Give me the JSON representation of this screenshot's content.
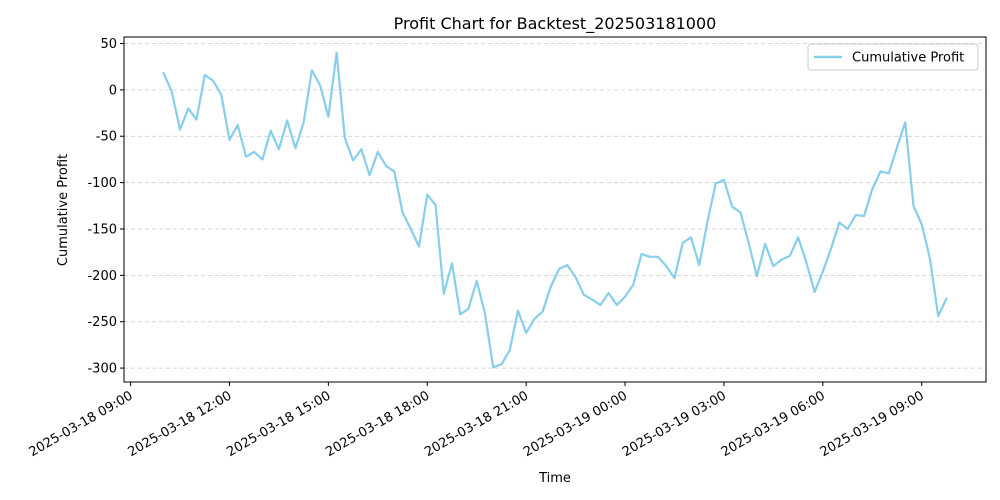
{
  "chart_data": {
    "type": "line",
    "title": "Profit Chart for Backtest_202503181000",
    "xlabel": "Time",
    "ylabel": "Cumulative Profit",
    "xlim": [
      "2025-03-18 08:48",
      "2025-03-19 10:57"
    ],
    "ylim": [
      -315,
      57
    ],
    "grid": "horizontal dashed",
    "legend_position": "top-right",
    "x_ticks": [
      "2025-03-18 09:00",
      "2025-03-18 12:00",
      "2025-03-18 15:00",
      "2025-03-18 18:00",
      "2025-03-18 21:00",
      "2025-03-19 00:00",
      "2025-03-19 03:00",
      "2025-03-19 06:00",
      "2025-03-19 09:00"
    ],
    "y_ticks": [
      50,
      0,
      -50,
      -100,
      -150,
      -200,
      -250,
      -300
    ],
    "series": [
      {
        "name": "Cumulative Profit",
        "color": "#87CEEB",
        "x": [
          "2025-03-18 10:00",
          "2025-03-18 10:15",
          "2025-03-18 10:30",
          "2025-03-18 10:45",
          "2025-03-18 11:00",
          "2025-03-18 11:15",
          "2025-03-18 11:30",
          "2025-03-18 11:45",
          "2025-03-18 12:00",
          "2025-03-18 12:15",
          "2025-03-18 12:30",
          "2025-03-18 12:45",
          "2025-03-18 13:00",
          "2025-03-18 13:15",
          "2025-03-18 13:30",
          "2025-03-18 13:45",
          "2025-03-18 14:00",
          "2025-03-18 14:15",
          "2025-03-18 14:30",
          "2025-03-18 14:45",
          "2025-03-18 15:00",
          "2025-03-18 15:15",
          "2025-03-18 15:30",
          "2025-03-18 15:45",
          "2025-03-18 16:00",
          "2025-03-18 16:15",
          "2025-03-18 16:30",
          "2025-03-18 16:45",
          "2025-03-18 17:00",
          "2025-03-18 17:15",
          "2025-03-18 17:30",
          "2025-03-18 17:45",
          "2025-03-18 18:00",
          "2025-03-18 18:15",
          "2025-03-18 18:30",
          "2025-03-18 18:45",
          "2025-03-18 19:00",
          "2025-03-18 19:15",
          "2025-03-18 19:30",
          "2025-03-18 19:45",
          "2025-03-18 20:00",
          "2025-03-18 20:15",
          "2025-03-18 20:30",
          "2025-03-18 20:45",
          "2025-03-18 21:00",
          "2025-03-18 21:15",
          "2025-03-18 21:30",
          "2025-03-18 21:45",
          "2025-03-18 22:00",
          "2025-03-18 22:15",
          "2025-03-18 22:30",
          "2025-03-18 22:45",
          "2025-03-18 23:00",
          "2025-03-18 23:15",
          "2025-03-18 23:30",
          "2025-03-18 23:45",
          "2025-03-19 00:00",
          "2025-03-19 00:15",
          "2025-03-19 00:30",
          "2025-03-19 00:45",
          "2025-03-19 01:00",
          "2025-03-19 01:15",
          "2025-03-19 01:30",
          "2025-03-19 01:45",
          "2025-03-19 02:00",
          "2025-03-19 02:15",
          "2025-03-19 02:30",
          "2025-03-19 02:45",
          "2025-03-19 03:00",
          "2025-03-19 03:15",
          "2025-03-19 03:30",
          "2025-03-19 03:45",
          "2025-03-19 04:00",
          "2025-03-19 04:15",
          "2025-03-19 04:30",
          "2025-03-19 04:45",
          "2025-03-19 05:00",
          "2025-03-19 05:15",
          "2025-03-19 05:30",
          "2025-03-19 05:45",
          "2025-03-19 06:00",
          "2025-03-19 06:15",
          "2025-03-19 06:30",
          "2025-03-19 06:45",
          "2025-03-19 07:00",
          "2025-03-19 07:15",
          "2025-03-19 07:30",
          "2025-03-19 07:45",
          "2025-03-19 08:00",
          "2025-03-19 08:15",
          "2025-03-19 08:30",
          "2025-03-19 08:45",
          "2025-03-19 09:00",
          "2025-03-19 09:15",
          "2025-03-19 09:30",
          "2025-03-19 09:45"
        ],
        "values": [
          18,
          -2,
          -43,
          -20,
          -32,
          16,
          10,
          -5,
          -54,
          -38,
          -72,
          -67,
          -75,
          -44,
          -64,
          -33,
          -63,
          -35,
          21,
          5,
          -29,
          40,
          -52,
          -76,
          -64,
          -92,
          -67,
          -82,
          -88,
          -132,
          -150,
          -169,
          -113,
          -124,
          -220,
          -187,
          -242,
          -236,
          -206,
          -241,
          -299,
          -296,
          -281,
          -238,
          -262,
          -247,
          -239,
          -212,
          -193,
          -189,
          -202,
          -221,
          -226,
          -232,
          -219,
          -232,
          -223,
          -210,
          -177,
          -180,
          -180,
          -190,
          -203,
          -165,
          -159,
          -189,
          -142,
          -101,
          -97,
          -126,
          -132,
          -165,
          -201,
          -166,
          -190,
          -183,
          -179,
          -159,
          -186,
          -218,
          -196,
          -171,
          -143,
          -150,
          -135,
          -136,
          -107,
          -88,
          -90,
          -62,
          -35,
          -125,
          -145,
          -182,
          -244,
          -225
        ]
      }
    ]
  }
}
